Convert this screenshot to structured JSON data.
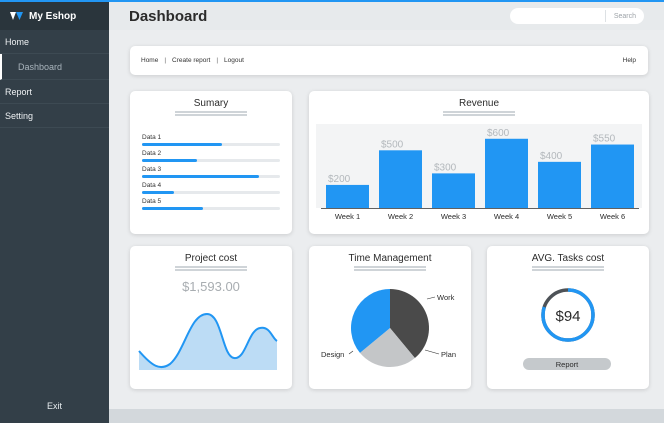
{
  "app": {
    "brand": "My Eshop"
  },
  "sidebar": {
    "items": [
      {
        "label": "Home"
      },
      {
        "label": "Dashboard"
      },
      {
        "label": "Report"
      },
      {
        "label": "Setting"
      }
    ],
    "exit_label": "Exit"
  },
  "header": {
    "title": "Dashboard",
    "search_button": "Search"
  },
  "breadcrumb": {
    "home": "Home",
    "create_report": "Create report",
    "logout": "Logout",
    "help": "Help"
  },
  "summary": {
    "title": "Sumary",
    "items": [
      {
        "label": "Data 1",
        "progress": 0.58
      },
      {
        "label": "Data 2",
        "progress": 0.4
      },
      {
        "label": "Data 3",
        "progress": 0.85
      },
      {
        "label": "Data 4",
        "progress": 0.23
      },
      {
        "label": "Data 5",
        "progress": 0.44
      }
    ]
  },
  "revenue": {
    "title": "Revenue",
    "chart_data": {
      "type": "bar",
      "categories": [
        "Week 1",
        "Week 2",
        "Week 3",
        "Week 4",
        "Week 5",
        "Week 6"
      ],
      "values": [
        200,
        500,
        300,
        600,
        400,
        550
      ],
      "data_labels": [
        "$200",
        "$500",
        "$300",
        "$600",
        "$400",
        "$550"
      ],
      "ylim": [
        0,
        650
      ],
      "color": "#2196f3"
    }
  },
  "project_cost": {
    "title": "Project cost",
    "amount": "$1,593.00",
    "fill_color": "#bcdcf5",
    "line_color": "#2196f3"
  },
  "time_management": {
    "title": "Time Management",
    "chart_data": {
      "type": "pie",
      "labels": [
        "Work",
        "Plan",
        "Design"
      ],
      "values": [
        39,
        25,
        36
      ],
      "colors": [
        "#4a4a4a",
        "#c4c6c8",
        "#2196f3"
      ]
    }
  },
  "avg_tasks_cost": {
    "title": "AVG. Tasks cost",
    "value": "$94",
    "progress": 0.8,
    "button_label": "Report",
    "ring_color": "#2196f3",
    "ring_rest_color": "#4d5257"
  }
}
